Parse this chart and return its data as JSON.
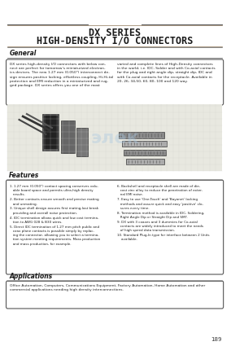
{
  "title_line1": "DX SERIES",
  "title_line2": "HIGH-DENSITY I/O CONNECTORS",
  "bg_color": "#f5f5f0",
  "page_bg": "#ffffff",
  "section_general": "General",
  "general_text_left": "DX series high-density I/O connectors with below connector are perfect for tomorrow's miniaturized electronics devices. The new 1.27 mm (0.050\") interconnect design ensures positive locking, effortless coupling, Hi-Hi-tal protection and EMI reduction in a miniaturized and rugged package. DX series offers you one of the most",
  "general_text_right": "varied and complete lines of High-Density connectors in the world, i.e. IDC, Solder and with Co-axial contacts for the plug and right angle dip, straight dip, IDC and with Co-axial contacts for the receptacle. Available in 20, 26, 34,50, 60, 80, 100 and 120 way.",
  "section_features": "Features",
  "features": [
    "1.27 mm (0.050\") contact spacing conserves valuable board space and permits ultra-high density results.",
    "Better contacts ensure smooth and precise mating and unmating.",
    "Unique shell design assures first mating-last break providing and overall noise protection.",
    "IDC termination allows quick and low cost termination to AWG 028 & B30 wires.",
    "Direct IDC termination of 1.27 mm pitch public and coax plane contacts is possible simply by replacing the connector, allowing you to select a termination system meeting requirements. Mass production and mass production, for example.",
    "Backshell and receptacle shell are made of die-cast zinc alloy to reduce the penetration of external EMI noise.",
    "Easy to use 'One-Touch' and 'Bayonet' locking methods and assure quick and easy 'positive' closures every time.",
    "Termination method is available in IDC, Soldering, Right Angle Dip or Straight Dip and SMT.",
    "DX with 3 coaxes and 3 dummies for Co-axial contacts are widely introduced to meet the needs of high speed data transmission.",
    "Standard Plug-In type for interface between 2 Units available."
  ],
  "section_applications": "Applications",
  "applications_text": "Office Automation, Computers, Communications Equipment, Factory Automation, Home Automation and other commercial applications needing high density interconnections.",
  "page_number": "189",
  "title_color": "#1a1a1a",
  "section_header_color": "#1a1a1a",
  "box_border_color": "#555555",
  "separator_color": "#8b7355",
  "separator_color2": "#555555"
}
